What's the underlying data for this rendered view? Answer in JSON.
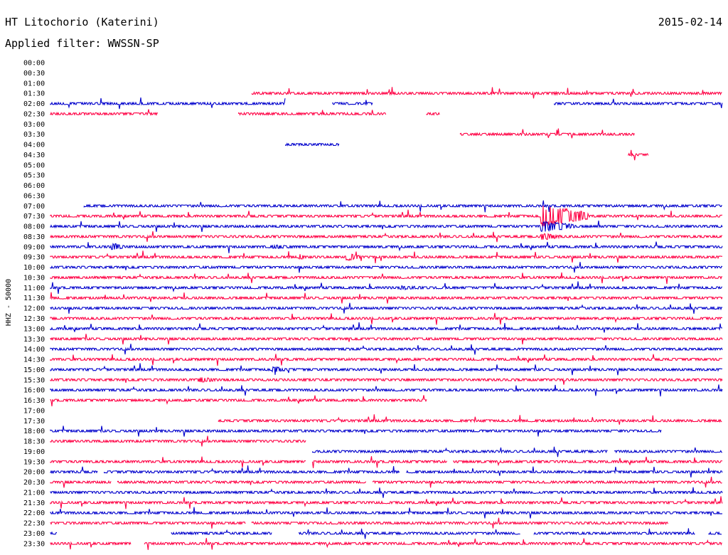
{
  "header": {
    "station": "HT Litochorio (Katerini)",
    "filter": "Applied filter: WWSSN-SP",
    "date": "2015-02-14"
  },
  "chart_data": {
    "type": "line",
    "ylabel": "HHZ - 50000",
    "colors": [
      "#0000cc",
      "#ff0044"
    ],
    "rows": [
      {
        "label": "00:00",
        "segments": []
      },
      {
        "label": "00:30",
        "segments": []
      },
      {
        "label": "01:00",
        "segments": []
      },
      {
        "label": "01:30",
        "segments": [
          [
            0.3,
            1.0
          ]
        ]
      },
      {
        "label": "02:00",
        "segments": [
          [
            0.0,
            0.35
          ],
          [
            0.42,
            0.48
          ],
          [
            0.75,
            1.0
          ]
        ]
      },
      {
        "label": "02:30",
        "segments": [
          [
            0.0,
            0.16
          ],
          [
            0.28,
            0.5
          ],
          [
            0.56,
            0.58
          ]
        ]
      },
      {
        "label": "03:00",
        "segments": []
      },
      {
        "label": "03:30",
        "segments": [
          [
            0.61,
            0.87
          ]
        ]
      },
      {
        "label": "04:00",
        "segments": [
          [
            0.35,
            0.43
          ]
        ]
      },
      {
        "label": "04:30",
        "segments": [
          [
            0.86,
            0.89
          ]
        ]
      },
      {
        "label": "05:00",
        "segments": []
      },
      {
        "label": "05:30",
        "segments": []
      },
      {
        "label": "06:00",
        "segments": []
      },
      {
        "label": "06:30",
        "segments": []
      },
      {
        "label": "07:00",
        "segments": [
          [
            0.05,
            1.0
          ]
        ]
      },
      {
        "label": "07:30",
        "segments": [
          [
            0.0,
            1.0
          ]
        ]
      },
      {
        "label": "08:00",
        "segments": [
          [
            0.0,
            1.0
          ]
        ]
      },
      {
        "label": "08:30",
        "segments": [
          [
            0.0,
            1.0
          ]
        ]
      },
      {
        "label": "09:00",
        "segments": [
          [
            0.0,
            1.0
          ]
        ]
      },
      {
        "label": "09:30",
        "segments": [
          [
            0.0,
            1.0
          ]
        ]
      },
      {
        "label": "10:00",
        "segments": [
          [
            0.0,
            1.0
          ]
        ]
      },
      {
        "label": "10:30",
        "segments": [
          [
            0.0,
            1.0
          ]
        ]
      },
      {
        "label": "11:00",
        "segments": [
          [
            0.0,
            1.0
          ]
        ]
      },
      {
        "label": "11:30",
        "segments": [
          [
            0.0,
            1.0
          ]
        ]
      },
      {
        "label": "12:00",
        "segments": [
          [
            0.0,
            1.0
          ]
        ]
      },
      {
        "label": "12:30",
        "segments": [
          [
            0.0,
            1.0
          ]
        ]
      },
      {
        "label": "13:00",
        "segments": [
          [
            0.0,
            1.0
          ]
        ]
      },
      {
        "label": "13:30",
        "segments": [
          [
            0.0,
            1.0
          ]
        ]
      },
      {
        "label": "14:00",
        "segments": [
          [
            0.0,
            1.0
          ]
        ]
      },
      {
        "label": "14:30",
        "segments": [
          [
            0.0,
            1.0
          ]
        ]
      },
      {
        "label": "15:00",
        "segments": [
          [
            0.0,
            1.0
          ]
        ]
      },
      {
        "label": "15:30",
        "segments": [
          [
            0.0,
            1.0
          ]
        ]
      },
      {
        "label": "16:00",
        "segments": [
          [
            0.0,
            1.0
          ]
        ]
      },
      {
        "label": "16:30",
        "segments": [
          [
            0.0,
            0.56
          ]
        ]
      },
      {
        "label": "17:00",
        "segments": []
      },
      {
        "label": "17:30",
        "segments": [
          [
            0.25,
            1.0
          ]
        ]
      },
      {
        "label": "18:00",
        "segments": [
          [
            0.0,
            0.91
          ]
        ]
      },
      {
        "label": "18:30",
        "segments": [
          [
            0.0,
            0.38
          ]
        ]
      },
      {
        "label": "19:00",
        "segments": [
          [
            0.39,
            0.83
          ],
          [
            0.84,
            1.0
          ]
        ]
      },
      {
        "label": "19:30",
        "segments": [
          [
            0.0,
            0.38
          ],
          [
            0.39,
            0.59
          ],
          [
            0.6,
            1.0
          ]
        ]
      },
      {
        "label": "20:00",
        "segments": [
          [
            0.0,
            0.07
          ],
          [
            0.08,
            0.52
          ],
          [
            0.53,
            1.0
          ]
        ]
      },
      {
        "label": "20:30",
        "segments": [
          [
            0.0,
            0.09
          ],
          [
            0.1,
            0.47
          ],
          [
            0.48,
            1.0
          ]
        ]
      },
      {
        "label": "21:00",
        "segments": [
          [
            0.0,
            1.0
          ]
        ]
      },
      {
        "label": "21:30",
        "segments": [
          [
            0.0,
            1.0
          ]
        ]
      },
      {
        "label": "22:00",
        "segments": [
          [
            0.0,
            1.0
          ]
        ]
      },
      {
        "label": "22:30",
        "segments": [
          [
            0.0,
            0.29
          ],
          [
            0.3,
            0.92
          ]
        ]
      },
      {
        "label": "23:00",
        "segments": [
          [
            0.0,
            0.01
          ],
          [
            0.18,
            0.33
          ],
          [
            0.37,
            0.7
          ],
          [
            0.72,
            0.96
          ],
          [
            0.98,
            1.0
          ]
        ]
      },
      {
        "label": "23:30",
        "segments": [
          [
            0.0,
            0.12
          ],
          [
            0.14,
            1.0
          ]
        ]
      }
    ],
    "events": [
      {
        "row": "07:30",
        "at": 0.73,
        "amp": 16,
        "len": 0.07
      },
      {
        "row": "08:00",
        "at": 0.73,
        "amp": 8,
        "len": 0.05
      },
      {
        "row": "08:30",
        "at": 0.73,
        "amp": 5,
        "len": 0.03
      },
      {
        "row": "09:00",
        "at": 0.09,
        "amp": 6,
        "len": 0.02
      },
      {
        "row": "09:00",
        "at": 0.33,
        "amp": 3,
        "len": 0.04
      },
      {
        "row": "09:30",
        "at": 0.37,
        "amp": 5,
        "len": 0.01
      },
      {
        "row": "09:30",
        "at": 0.44,
        "amp": 6,
        "len": 0.02
      },
      {
        "row": "15:00",
        "at": 0.33,
        "amp": 5,
        "len": 0.02
      },
      {
        "row": "15:30",
        "at": 0.22,
        "amp": 4,
        "len": 0.03
      },
      {
        "row": "11:00",
        "at": 0.52,
        "amp": 3,
        "len": 0.05
      },
      {
        "row": "01:30",
        "at": 0.74,
        "amp": 2,
        "len": 0.05
      }
    ]
  }
}
